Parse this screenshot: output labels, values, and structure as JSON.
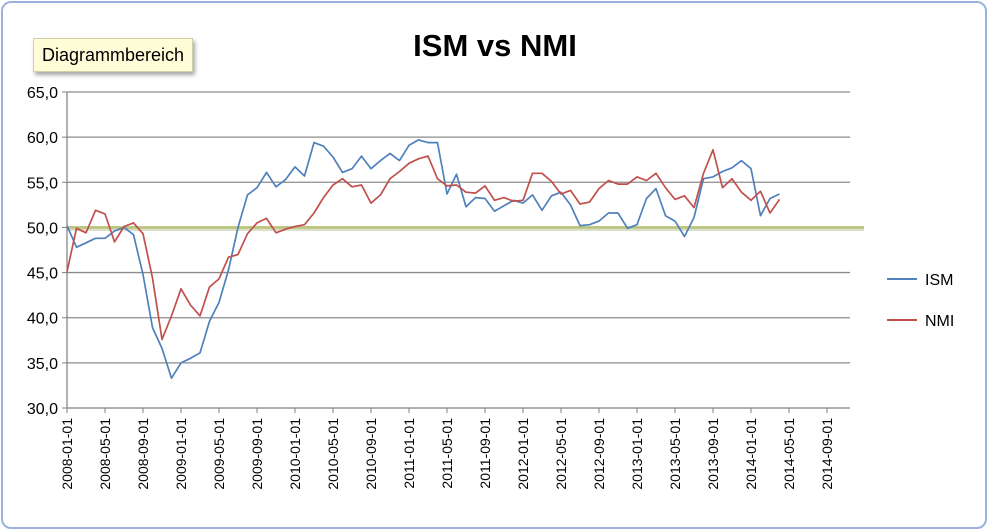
{
  "tooltip": "Diagrammbereich",
  "chart_data": {
    "type": "line",
    "title": "ISM vs NMI",
    "xlabel": "",
    "ylabel": "",
    "ylim": [
      30,
      65
    ],
    "yticks": [
      "30,0",
      "35,0",
      "40,0",
      "45,0",
      "50,0",
      "55,0",
      "60,0",
      "65,0"
    ],
    "xticks": [
      "2008-01-01",
      "2008-05-01",
      "2008-09-01",
      "2009-01-01",
      "2009-05-01",
      "2009-09-01",
      "2010-01-01",
      "2010-05-01",
      "2010-09-01",
      "2011-01-01",
      "2011-05-01",
      "2011-09-01",
      "2012-01-01",
      "2012-05-01",
      "2012-09-01",
      "2013-01-01",
      "2013-05-01",
      "2013-09-01",
      "2014-01-01",
      "2014-05-01",
      "2014-09-01"
    ],
    "x_start": "2008-01",
    "grid": true,
    "legend_position": "right",
    "threshold": 50,
    "series": [
      {
        "name": "ISM",
        "color": "#4f81bd",
        "values": [
          50.2,
          47.8,
          48.3,
          48.8,
          48.8,
          49.6,
          50.0,
          49.2,
          44.8,
          38.9,
          36.6,
          33.3,
          35.0,
          35.5,
          36.1,
          39.6,
          41.7,
          45.3,
          50.0,
          53.6,
          54.4,
          56.1,
          54.5,
          55.3,
          56.7,
          55.7,
          59.4,
          59.0,
          57.8,
          56.1,
          56.5,
          57.9,
          56.5,
          57.4,
          58.2,
          57.4,
          59.1,
          59.7,
          59.4,
          59.4,
          53.7,
          55.9,
          52.3,
          53.3,
          53.2,
          51.8,
          52.4,
          53.0,
          52.7,
          53.6,
          51.9,
          53.5,
          53.9,
          52.5,
          50.2,
          50.3,
          50.7,
          51.6,
          51.6,
          49.9,
          50.3,
          53.2,
          54.3,
          51.3,
          50.7,
          49.0,
          51.1,
          55.4,
          55.6,
          56.2,
          56.6,
          57.4,
          56.5,
          51.3,
          53.2,
          53.7
        ]
      },
      {
        "name": "NMI",
        "color": "#c0504d",
        "values": [
          45.1,
          49.9,
          49.4,
          51.9,
          51.5,
          48.4,
          50.1,
          50.5,
          49.3,
          44.4,
          37.6,
          40.2,
          43.2,
          41.4,
          40.2,
          43.4,
          44.3,
          46.7,
          47.0,
          49.3,
          50.5,
          51.0,
          49.4,
          49.8,
          50.1,
          50.3,
          51.6,
          53.3,
          54.7,
          55.4,
          54.5,
          54.7,
          52.7,
          53.6,
          55.4,
          56.2,
          57.1,
          57.6,
          57.9,
          55.4,
          54.6,
          54.7,
          53.9,
          53.8,
          54.6,
          53.0,
          53.3,
          52.9,
          53.0,
          56.0,
          56.0,
          55.1,
          53.7,
          54.1,
          52.6,
          52.8,
          54.3,
          55.2,
          54.8,
          54.8,
          55.6,
          55.2,
          56.0,
          54.4,
          53.1,
          53.5,
          52.2,
          56.0,
          58.6,
          54.4,
          55.4,
          53.9,
          53.0,
          54.0,
          51.6,
          53.1
        ]
      }
    ]
  }
}
